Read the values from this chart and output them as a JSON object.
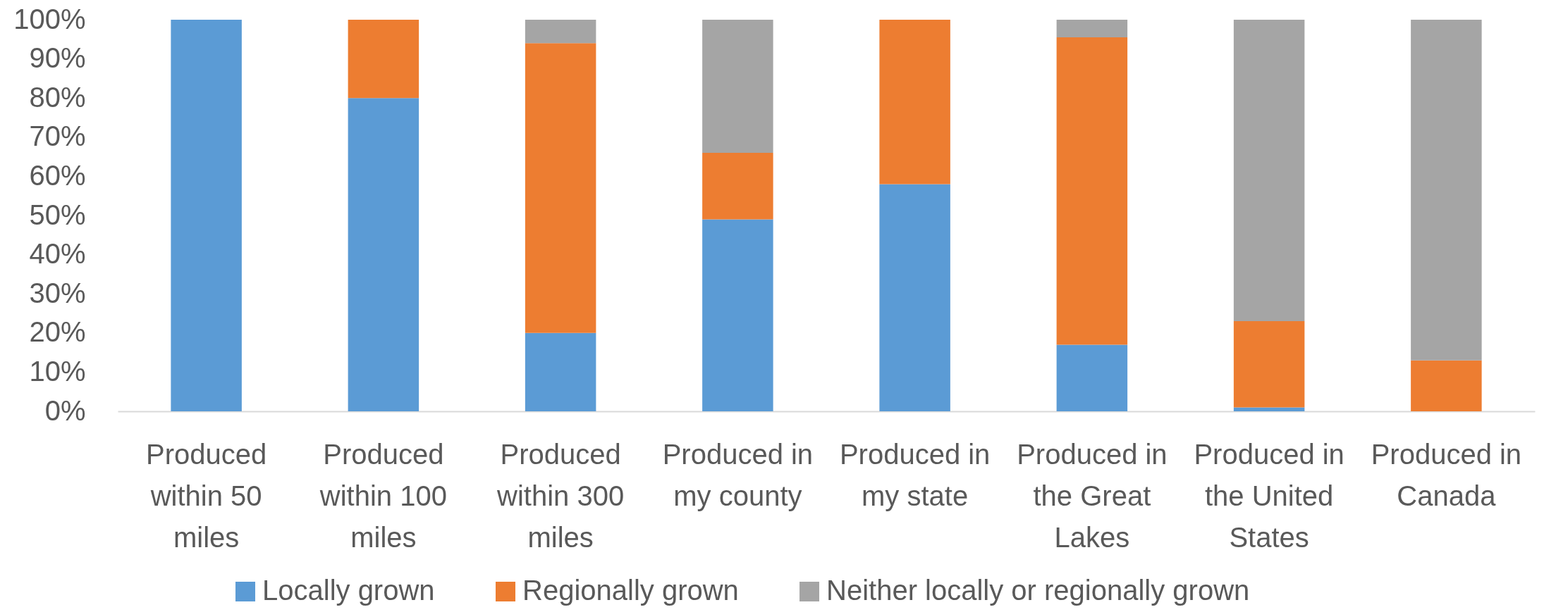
{
  "chart_data": {
    "type": "bar",
    "stacked": true,
    "categories": [
      "Produced within 50 miles",
      "Produced within 100 miles",
      "Produced within 300 miles",
      "Produced in my county",
      "Produced in my state",
      "Produced in the Great Lakes",
      "Produced in the United States",
      "Produced in Canada"
    ],
    "series": [
      {
        "name": "Locally grown",
        "color": "#5b9bd5",
        "values": [
          100,
          80,
          20,
          49,
          58,
          17,
          1,
          0
        ]
      },
      {
        "name": "Regionally grown",
        "color": "#ed7d31",
        "values": [
          0,
          20,
          74,
          17,
          42,
          78.5,
          22,
          13
        ]
      },
      {
        "name": "Neither locally or regionally grown",
        "color": "#a5a5a5",
        "values": [
          0,
          0,
          6,
          34,
          0,
          4.5,
          77,
          87
        ]
      }
    ],
    "ylim": [
      0,
      100
    ],
    "yticks": [
      {
        "value": 0,
        "label": "0%"
      },
      {
        "value": 10,
        "label": "10%"
      },
      {
        "value": 20,
        "label": "20%"
      },
      {
        "value": 30,
        "label": "30%"
      },
      {
        "value": 40,
        "label": "40%"
      },
      {
        "value": 50,
        "label": "50%"
      },
      {
        "value": 60,
        "label": "60%"
      },
      {
        "value": 70,
        "label": "70%"
      },
      {
        "value": 80,
        "label": "80%"
      },
      {
        "value": 90,
        "label": "90%"
      },
      {
        "value": 100,
        "label": "100%"
      }
    ],
    "legend": "bottom"
  }
}
